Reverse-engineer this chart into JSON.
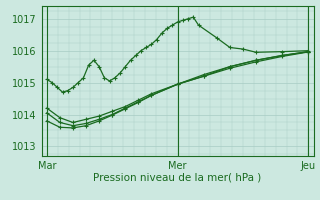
{
  "background_color": "#cce8e0",
  "grid_color": "#a8ccc4",
  "line_color": "#1a6b20",
  "xlabel": "Pression niveau de la mer( hPa )",
  "yticks": [
    1013,
    1014,
    1015,
    1016,
    1017
  ],
  "ylim": [
    1012.7,
    1017.4
  ],
  "xtick_labels": [
    "Mar",
    "Mer",
    "Jeu"
  ],
  "xtick_positions": [
    0.0,
    0.5,
    1.0
  ],
  "xlim": [
    -0.02,
    1.02
  ],
  "series1_x": [
    0.0,
    0.02,
    0.04,
    0.06,
    0.08,
    0.1,
    0.12,
    0.14,
    0.16,
    0.18,
    0.2,
    0.22,
    0.24,
    0.26,
    0.28,
    0.3,
    0.32,
    0.34,
    0.36,
    0.38,
    0.4,
    0.42,
    0.44,
    0.46,
    0.48,
    0.5,
    0.52,
    0.54,
    0.56,
    0.58,
    0.65,
    0.7,
    0.75,
    0.8,
    0.9,
    1.0
  ],
  "series1_y": [
    1015.1,
    1015.0,
    1014.85,
    1014.7,
    1014.75,
    1014.85,
    1015.0,
    1015.15,
    1015.55,
    1015.7,
    1015.5,
    1015.15,
    1015.05,
    1015.15,
    1015.3,
    1015.5,
    1015.7,
    1015.85,
    1016.0,
    1016.1,
    1016.2,
    1016.35,
    1016.55,
    1016.7,
    1016.8,
    1016.9,
    1016.95,
    1017.0,
    1017.05,
    1016.8,
    1016.4,
    1016.1,
    1016.05,
    1015.95,
    1015.97,
    1016.0
  ],
  "series2_x": [
    0.0,
    0.05,
    0.1,
    0.15,
    0.2,
    0.25,
    0.3,
    0.35,
    0.4,
    0.5,
    0.6,
    0.7,
    0.8,
    0.9,
    1.0
  ],
  "series2_y": [
    1014.2,
    1013.9,
    1013.75,
    1013.85,
    1013.95,
    1014.1,
    1014.25,
    1014.45,
    1014.65,
    1014.95,
    1015.2,
    1015.5,
    1015.7,
    1015.85,
    1015.97
  ],
  "series3_x": [
    0.0,
    0.05,
    0.1,
    0.15,
    0.2,
    0.25,
    0.3,
    0.35,
    0.4,
    0.5,
    0.6,
    0.7,
    0.8,
    0.9,
    1.0
  ],
  "series3_y": [
    1014.05,
    1013.75,
    1013.65,
    1013.72,
    1013.85,
    1014.0,
    1014.2,
    1014.4,
    1014.6,
    1014.95,
    1015.2,
    1015.45,
    1015.65,
    1015.82,
    1015.96
  ],
  "series4_x": [
    0.0,
    0.05,
    0.1,
    0.15,
    0.2,
    0.25,
    0.3,
    0.35,
    0.4,
    0.5,
    0.6,
    0.7,
    0.8,
    0.9,
    1.0
  ],
  "series4_y": [
    1013.8,
    1013.6,
    1013.58,
    1013.65,
    1013.8,
    1013.98,
    1014.18,
    1014.38,
    1014.6,
    1014.95,
    1015.25,
    1015.5,
    1015.7,
    1015.85,
    1015.97
  ]
}
